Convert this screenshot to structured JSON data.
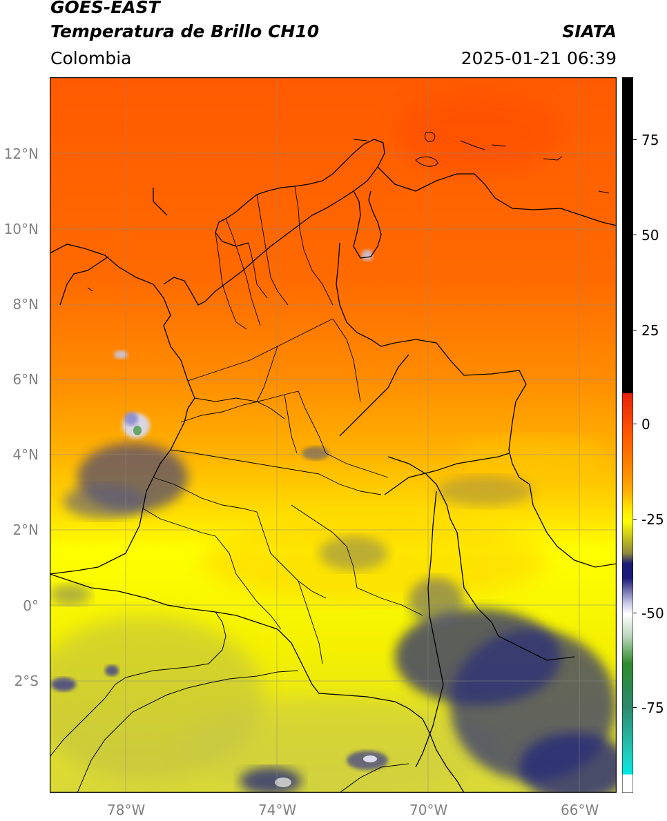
{
  "header": {
    "satellite": "GOES-EAST",
    "product": "Temperatura de Brillo CH10",
    "region": "Colombia",
    "agency": "SIATA",
    "timestamp": "2025-01-21 06:39"
  },
  "axes": {
    "lat_labels": [
      "12°N",
      "10°N",
      "8°N",
      "6°N",
      "4°N",
      "2°N",
      "0°",
      "2°S"
    ],
    "lon_labels": [
      "78°W",
      "74°W",
      "70°W",
      "66°W"
    ]
  },
  "colorbar": {
    "ticks": [
      "75",
      "50",
      "25",
      "0",
      "-25",
      "-50",
      "-75"
    ],
    "colors": {
      "black": "#000000",
      "red": "#e8210a",
      "orange": "#ff8a00",
      "yellow": "#ffff00",
      "olive": "#8f8a3a",
      "navy": "#1a1a78",
      "white": "#ffffff",
      "green": "#2e8b2e",
      "teal": "#1fd0c0"
    }
  },
  "map_colors": {
    "top": "#ff5a00",
    "mid": "#ffa300",
    "low": "#ffff00",
    "south": "#d6d640",
    "clouds": "#2a2f78"
  }
}
